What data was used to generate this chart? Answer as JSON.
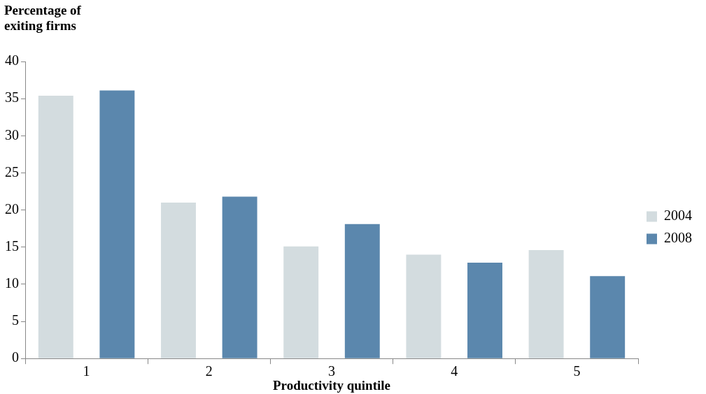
{
  "chart_data": {
    "type": "bar",
    "ylabel": "Percentage of exiting firms",
    "xlabel": "Productivity quintile",
    "categories": [
      "1",
      "2",
      "3",
      "4",
      "5"
    ],
    "series": [
      {
        "name": "2004",
        "color": "#d3dcdf",
        "values": [
          35.4,
          21,
          15.1,
          14,
          14.6
        ]
      },
      {
        "name": "2008",
        "color": "#5b87ad",
        "values": [
          36.1,
          21.8,
          18.1,
          12.9,
          11.1
        ]
      }
    ],
    "ylim": [
      0,
      40
    ],
    "yticks": [
      0,
      5,
      10,
      15,
      20,
      25,
      30,
      35,
      40
    ],
    "grid": false,
    "legend": "right"
  }
}
